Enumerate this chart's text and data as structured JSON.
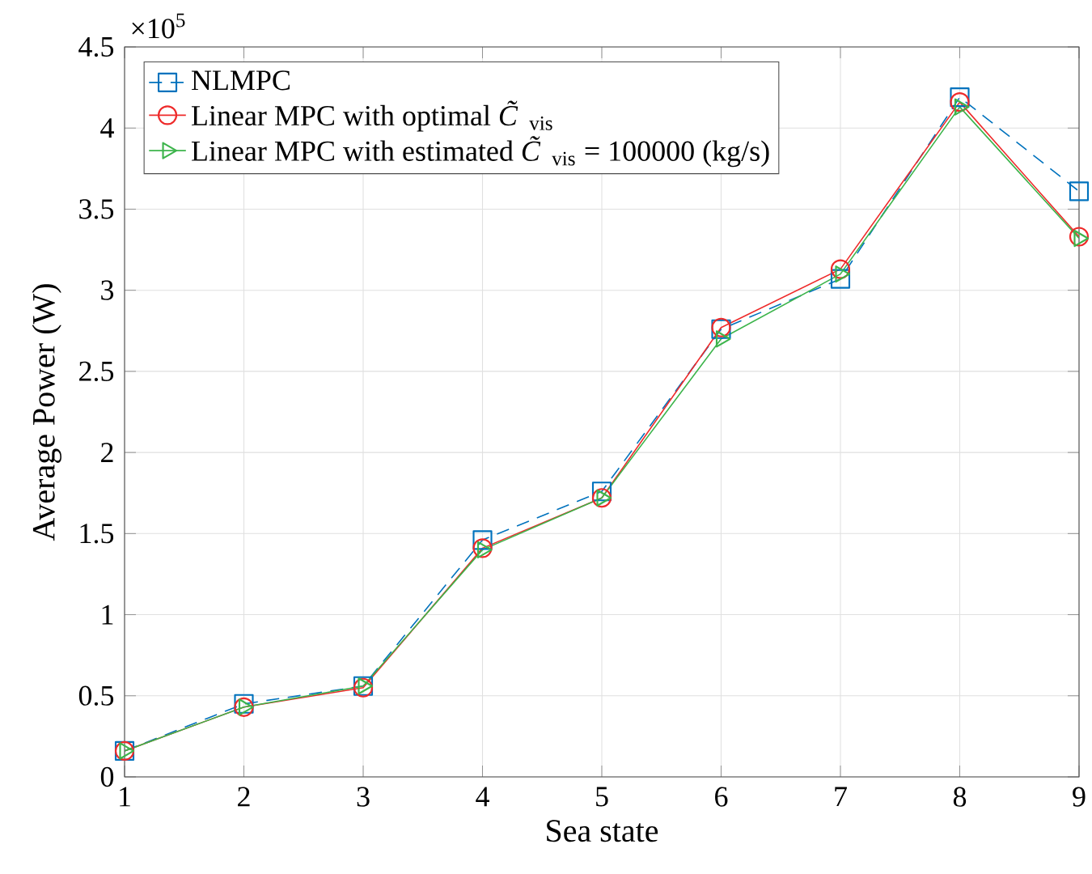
{
  "chart_data": {
    "type": "line",
    "xlabel": "Sea state",
    "ylabel": "Average Power (W)",
    "x": [
      1,
      2,
      3,
      4,
      5,
      6,
      7,
      8,
      9
    ],
    "series": [
      {
        "name": "NLMPC",
        "color": "#0072bd",
        "marker": "square",
        "line_style": "dashed",
        "values": [
          0.16,
          0.45,
          0.56,
          1.46,
          1.76,
          2.76,
          3.07,
          4.19,
          3.61
        ]
      },
      {
        "name": "Linear MPC with optimal *C̃*$_{vis}$",
        "color": "#ee2a2a",
        "marker": "circle",
        "line_style": "solid",
        "values": [
          0.16,
          0.43,
          0.55,
          1.41,
          1.72,
          2.77,
          3.13,
          4.16,
          3.33
        ]
      },
      {
        "name": "Linear MPC with estimated *C̃*$_{vis}$ = 100000 (kg/s)",
        "color": "#3cb44b",
        "marker": "triangle",
        "line_style": "solid",
        "values": [
          0.16,
          0.43,
          0.56,
          1.4,
          1.72,
          2.7,
          3.1,
          4.13,
          3.32
        ]
      }
    ],
    "xlim": [
      1,
      9
    ],
    "ylim": [
      0,
      4.5
    ],
    "xticks": [
      1,
      2,
      3,
      4,
      5,
      6,
      7,
      8,
      9
    ],
    "yticks": [
      0,
      0.5,
      1,
      1.5,
      2,
      2.5,
      3,
      3.5,
      4,
      4.5
    ],
    "annotations": [
      "×10$^{5}$"
    ],
    "grid": true,
    "legend": "top left"
  }
}
